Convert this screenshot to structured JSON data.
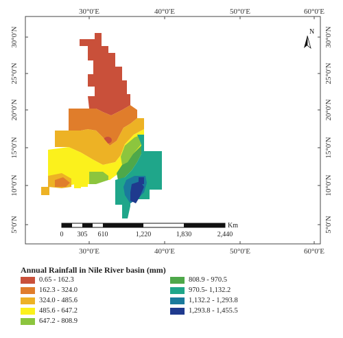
{
  "map": {
    "top_labels": [
      "30°0′E",
      "40°0′E",
      "50°0′E",
      "60°0′E"
    ],
    "bottom_labels": [
      "30°0′E",
      "40°0′E",
      "50°0′E",
      "60°0′E"
    ],
    "left_labels": [
      "30°0′N",
      "25°0′N",
      "20°0′N",
      "15°0′N",
      "10°0′N",
      "5°0′N"
    ],
    "right_labels": [
      "30°0′N",
      "25°0′N",
      "20°0′N",
      "15°0′N",
      "10°0′N",
      "5°0′N"
    ],
    "north_label": "N",
    "scale": {
      "unit": "Km",
      "ticks": [
        "0",
        "305",
        "610",
        "1,220",
        "1,830",
        "2,440"
      ]
    }
  },
  "legend": {
    "title": "Annual Rainfall in Nile River basin (mm)",
    "items": [
      {
        "label": "0.65 - 162.3",
        "color": "#c9503a"
      },
      {
        "label": "162.3 - 324.0",
        "color": "#e07d2b"
      },
      {
        "label": "324.0 - 485.6",
        "color": "#edb225"
      },
      {
        "label": "485.6 - 647.2",
        "color": "#fbf11c"
      },
      {
        "label": "647.2 - 808.9",
        "color": "#8cc53e"
      },
      {
        "label": "808.9 - 970.5",
        "color": "#4ea84a"
      },
      {
        "label": "970.5- 1,132.2",
        "color": "#1fa68a"
      },
      {
        "label": "1,132.2 - 1,293.8",
        "color": "#1a7a9c"
      },
      {
        "label": "1,293.8 - 1,455.5",
        "color": "#1f3a8e"
      }
    ]
  }
}
